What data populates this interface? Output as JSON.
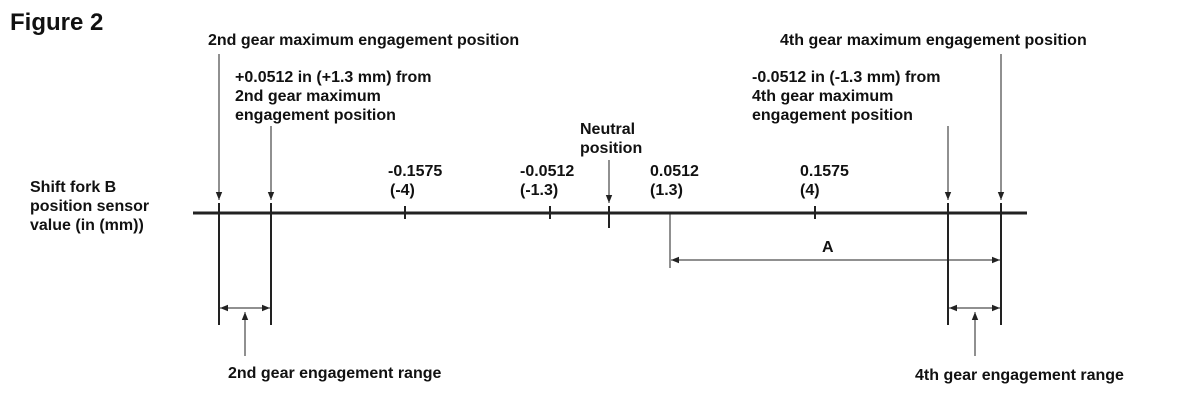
{
  "figure_label": "Figure 2",
  "axis_label": [
    "Shift fork B",
    "position sensor",
    "value (in (mm))"
  ],
  "second_gear_max": "2nd gear maximum engagement position",
  "second_gear_offset": [
    "+0.0512 in (+1.3 mm) from",
    "2nd gear maximum",
    "engagement position"
  ],
  "neutral": [
    "Neutral",
    "position"
  ],
  "ticks": [
    {
      "in": "-0.1575",
      "mm": "(-4)"
    },
    {
      "in": "-0.0512",
      "mm": "(-1.3)"
    },
    {
      "in": "0.0512",
      "mm": "(1.3)"
    },
    {
      "in": "0.1575",
      "mm": "(4)"
    }
  ],
  "fourth_gear_max": "4th gear maximum engagement position",
  "fourth_gear_offset": [
    "-0.0512 in (-1.3 mm) from",
    "4th gear maximum",
    "engagement position"
  ],
  "range_a": "A",
  "second_gear_range": "2nd gear engagement range",
  "fourth_gear_range": "4th gear engagement range"
}
